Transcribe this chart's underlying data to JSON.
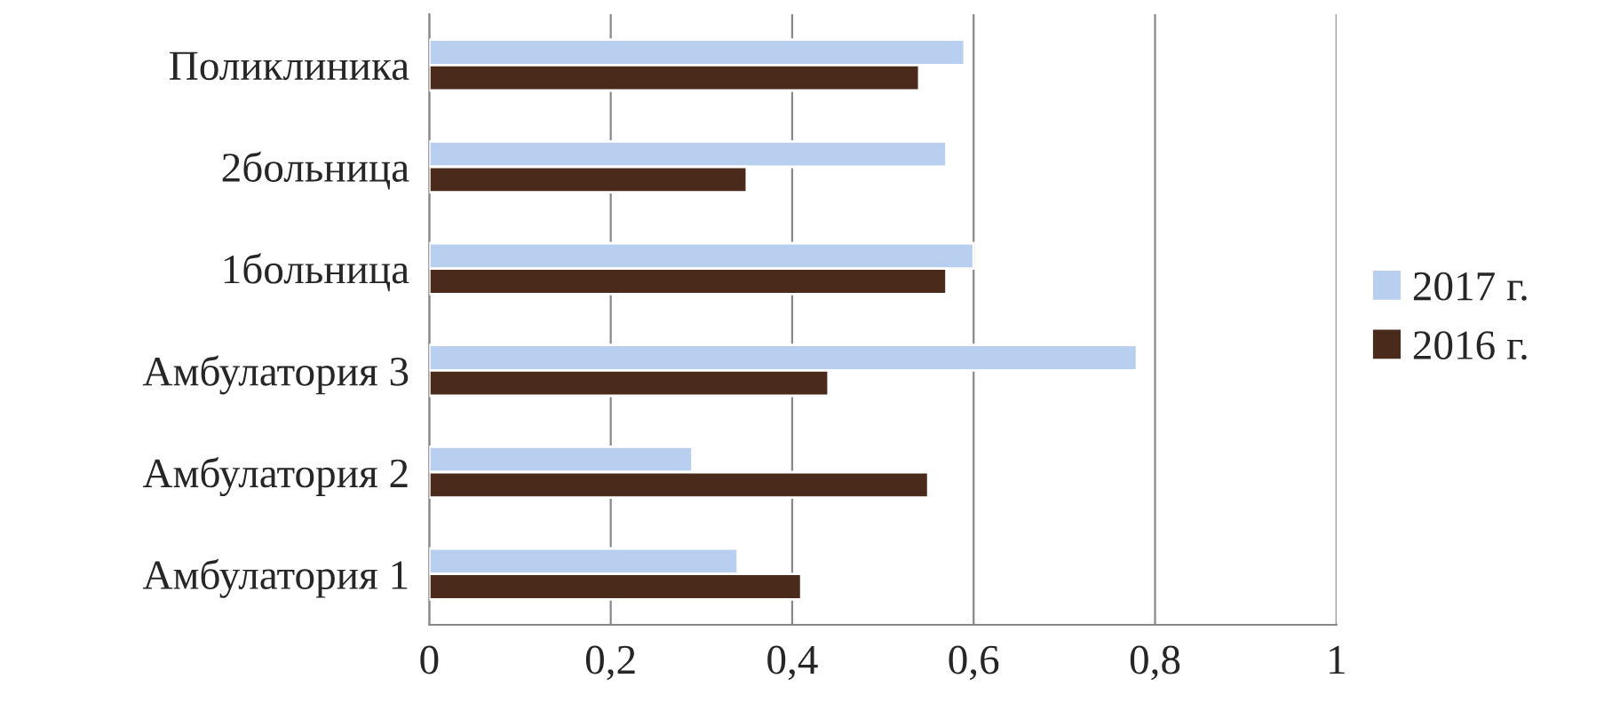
{
  "chart_data": {
    "type": "bar",
    "orientation": "horizontal",
    "categories": [
      "Поликлиника",
      "2больница",
      "1больница",
      "Амбулатория 3",
      "Амбулатория 2",
      "Амбулатория 1"
    ],
    "series": [
      {
        "name": "2017 г.",
        "color": "#b8cff0",
        "values": [
          0.59,
          0.57,
          0.6,
          0.78,
          0.29,
          0.34
        ]
      },
      {
        "name": "2016 г.",
        "color": "#4a2a1a",
        "values": [
          0.54,
          0.35,
          0.57,
          0.44,
          0.55,
          0.41
        ]
      }
    ],
    "xlim": [
      0,
      1
    ],
    "xticks": [
      {
        "value": 0,
        "label": "0"
      },
      {
        "value": 0.2,
        "label": "0,2"
      },
      {
        "value": 0.4,
        "label": "0,4"
      },
      {
        "value": 0.6,
        "label": "0,6"
      },
      {
        "value": 0.8,
        "label": "0,8"
      },
      {
        "value": 1,
        "label": "1"
      }
    ],
    "grid": "x",
    "legend": "right"
  }
}
